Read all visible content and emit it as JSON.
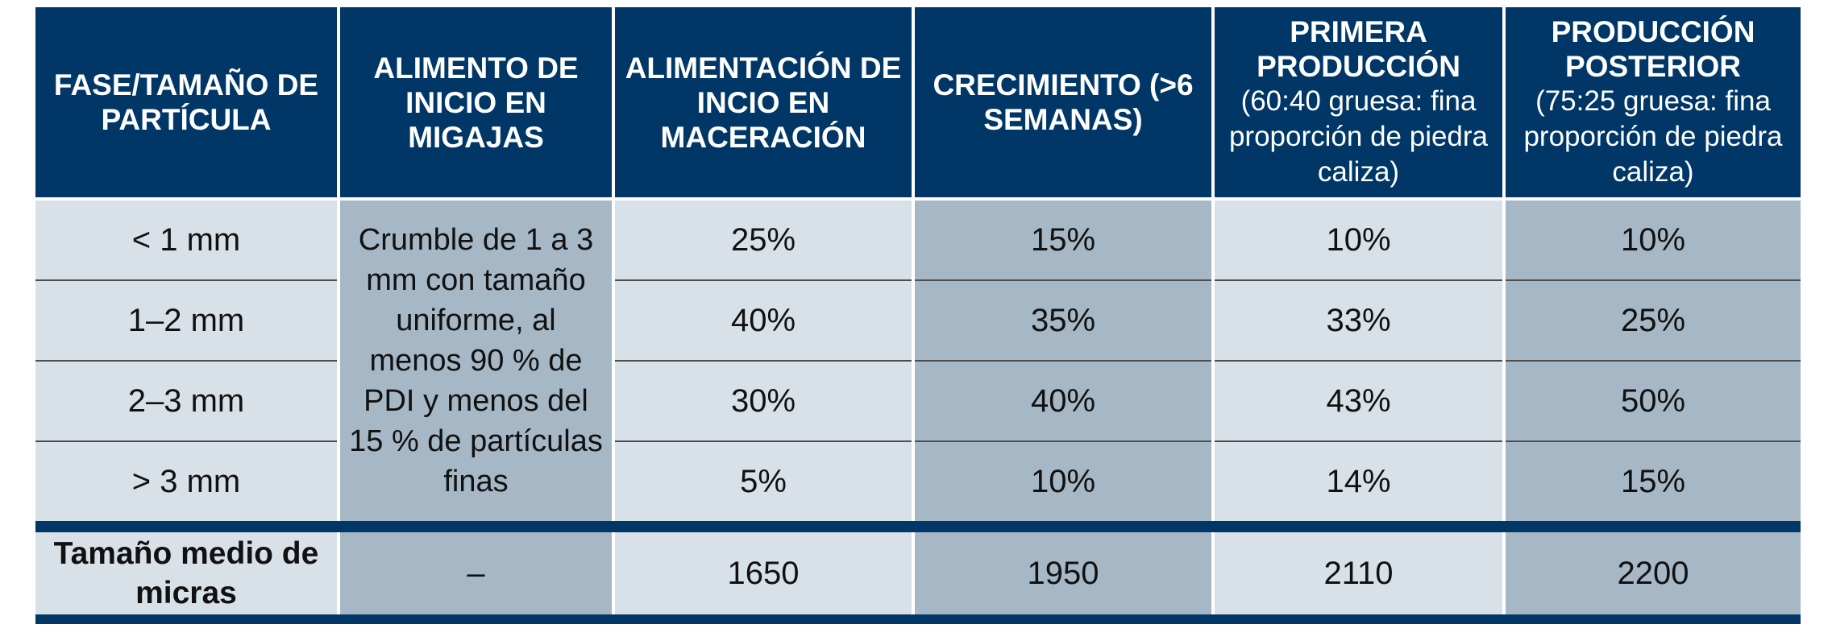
{
  "headers": [
    {
      "title": "FASE/TAMAÑO DE PARTÍCULA",
      "sub": ""
    },
    {
      "title": "ALIMENTO DE INICIO EN MIGAJAS",
      "sub": ""
    },
    {
      "title": "ALIMENTACIÓN DE INCIO EN MACERACIÓN",
      "sub": ""
    },
    {
      "title": "CRECIMIENTO (>6 SEMANAS)",
      "sub": ""
    },
    {
      "title": "PRIMERA PRODUCCIÓN",
      "sub": "(60:40 gruesa: fina proporción de piedra caliza)"
    },
    {
      "title": "PRODUCCIÓN POSTERIOR",
      "sub": "(75:25 gruesa: fina proporción de piedra caliza)"
    }
  ],
  "crumble_note": "Crumble de 1 a 3 mm con tamaño uniforme, al menos 90 % de PDI y menos del 15 % de partículas finas",
  "rows": [
    {
      "size": "< 1 mm",
      "maceracion": "25%",
      "crecimiento": "15%",
      "primera": "10%",
      "posterior": "10%"
    },
    {
      "size": "1–2 mm",
      "maceracion": "40%",
      "crecimiento": "35%",
      "primera": "33%",
      "posterior": "25%"
    },
    {
      "size": "2–3 mm",
      "maceracion": "30%",
      "crecimiento": "40%",
      "primera": "43%",
      "posterior": "50%"
    },
    {
      "size": "> 3 mm",
      "maceracion": "5%",
      "crecimiento": "10%",
      "primera": "14%",
      "posterior": "15%"
    }
  ],
  "total": {
    "label": "Tamaño medio de micras",
    "migajas": "–",
    "maceracion": "1650",
    "crecimiento": "1950",
    "primera": "2110",
    "posterior": "2200"
  },
  "colors": {
    "header": "#003767",
    "light_cell": "#d9e1e8",
    "dark_cell": "#a6b8c6"
  }
}
